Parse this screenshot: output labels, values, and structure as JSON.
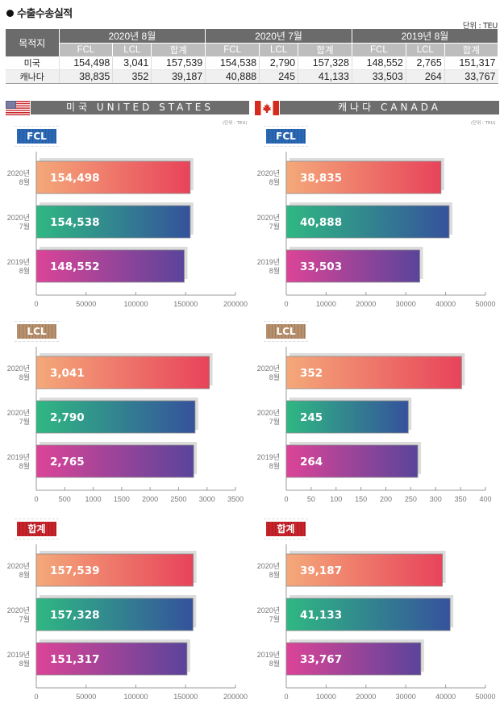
{
  "header": {
    "title": "수출수송실적",
    "unit": "단위 : TEU"
  },
  "summary_table": {
    "dest_header": "목적지",
    "groups": [
      "2020년 8월",
      "2020년 7월",
      "2019년 8월"
    ],
    "sub_headers": [
      "FCL",
      "LCL",
      "합계"
    ],
    "rows": [
      {
        "name": "미국",
        "values": [
          "154,498",
          "3,041",
          "157,539",
          "154,538",
          "2,790",
          "157,328",
          "148,552",
          "2,765",
          "151,317"
        ]
      },
      {
        "name": "캐나다",
        "values": [
          "38,835",
          "352",
          "39,187",
          "40,888",
          "245",
          "41,133",
          "33,503",
          "264",
          "33,767"
        ]
      }
    ]
  },
  "countries": [
    {
      "key": "us",
      "title": "미국 UNITED STATES",
      "flag": "us-flag",
      "unit": "(단위 : TEU)"
    },
    {
      "key": "ca",
      "title": "캐나다 CANADA",
      "flag": "canada-flag",
      "unit": "(단위 : TEU)"
    }
  ],
  "badges": {
    "fcl": "FCL",
    "lcl": "LCL",
    "total": "합계"
  },
  "colors": {
    "header_dark": "#6b6b6b",
    "header_light": "#bdbdbd",
    "gradient_2020_08": [
      "#f4a97a",
      "#e8435a"
    ],
    "gradient_2020_07": [
      "#2fb882",
      "#35529c"
    ],
    "gradient_2019_08": [
      "#dc4497",
      "#5a449b"
    ],
    "shadow": "#dcdcdc",
    "fcl_badge": "#2c69b5",
    "lcl_badge": "#b7916e",
    "total_badge": "#c8232a"
  },
  "chart_data": [
    {
      "id": "us-fcl",
      "type": "bar",
      "orientation": "horizontal",
      "title": "FCL",
      "country": "미국",
      "categories": [
        "2020년 8월",
        "2020년 7월",
        "2019년 8월"
      ],
      "category_lines": [
        [
          "2020년",
          "8월"
        ],
        [
          "2020년",
          "7월"
        ],
        [
          "2019년",
          "8월"
        ]
      ],
      "values": [
        154498,
        154538,
        148552
      ],
      "labels": [
        "154,498",
        "154,538",
        "148,552"
      ],
      "xlim": [
        0,
        200000
      ],
      "ticks": [
        0,
        50000,
        100000,
        150000,
        200000
      ],
      "grid": false,
      "legend": "none"
    },
    {
      "id": "ca-fcl",
      "type": "bar",
      "orientation": "horizontal",
      "title": "FCL",
      "country": "캐나다",
      "categories": [
        "2020년 8월",
        "2020년 7월",
        "2019년 8월"
      ],
      "category_lines": [
        [
          "2020년",
          "8월"
        ],
        [
          "2020년",
          "7월"
        ],
        [
          "2019년",
          "8월"
        ]
      ],
      "values": [
        38835,
        40888,
        33503
      ],
      "labels": [
        "38,835",
        "40,888",
        "33,503"
      ],
      "xlim": [
        0,
        50000
      ],
      "ticks": [
        0,
        10000,
        20000,
        30000,
        40000,
        50000
      ],
      "grid": false,
      "legend": "none"
    },
    {
      "id": "us-lcl",
      "type": "bar",
      "orientation": "horizontal",
      "title": "LCL",
      "country": "미국",
      "categories": [
        "2020년 8월",
        "2020년 7월",
        "2019년 8월"
      ],
      "category_lines": [
        [
          "2020년",
          "8월"
        ],
        [
          "2020년",
          "7월"
        ],
        [
          "2019년",
          "8월"
        ]
      ],
      "values": [
        3041,
        2790,
        2765
      ],
      "labels": [
        "3,041",
        "2,790",
        "2,765"
      ],
      "xlim": [
        0,
        3500
      ],
      "ticks": [
        0,
        500,
        1000,
        1500,
        2000,
        2500,
        3000,
        3500
      ],
      "grid": false,
      "legend": "none"
    },
    {
      "id": "ca-lcl",
      "type": "bar",
      "orientation": "horizontal",
      "title": "LCL",
      "country": "캐나다",
      "categories": [
        "2020년 8월",
        "2020년 7월",
        "2019년 8월"
      ],
      "category_lines": [
        [
          "2020년",
          "8월"
        ],
        [
          "2020년",
          "7월"
        ],
        [
          "2019년",
          "8월"
        ]
      ],
      "values": [
        352,
        245,
        264
      ],
      "labels": [
        "352",
        "245",
        "264"
      ],
      "xlim": [
        0,
        400
      ],
      "ticks": [
        0,
        50,
        100,
        150,
        200,
        250,
        300,
        350,
        400
      ],
      "grid": false,
      "legend": "none"
    },
    {
      "id": "us-total",
      "type": "bar",
      "orientation": "horizontal",
      "title": "합계",
      "country": "미국",
      "categories": [
        "2020년 8월",
        "2020년 7월",
        "2019년 8월"
      ],
      "category_lines": [
        [
          "2020년",
          "8월"
        ],
        [
          "2020년",
          "7월"
        ],
        [
          "2019년",
          "8월"
        ]
      ],
      "values": [
        157539,
        157328,
        151317
      ],
      "labels": [
        "157,539",
        "157,328",
        "151,317"
      ],
      "xlim": [
        0,
        200000
      ],
      "ticks": [
        0,
        50000,
        100000,
        150000,
        200000
      ],
      "grid": false,
      "legend": "none"
    },
    {
      "id": "ca-total",
      "type": "bar",
      "orientation": "horizontal",
      "title": "합계",
      "country": "캐나다",
      "categories": [
        "2020년 8월",
        "2020년 7월",
        "2019년 8월"
      ],
      "category_lines": [
        [
          "2020년",
          "8월"
        ],
        [
          "2020년",
          "7월"
        ],
        [
          "2019년",
          "8월"
        ]
      ],
      "values": [
        39187,
        41133,
        33767
      ],
      "labels": [
        "39,187",
        "41,133",
        "33,767"
      ],
      "xlim": [
        0,
        50000
      ],
      "ticks": [
        0,
        10000,
        20000,
        30000,
        40000,
        50000
      ],
      "grid": false,
      "legend": "none"
    }
  ]
}
